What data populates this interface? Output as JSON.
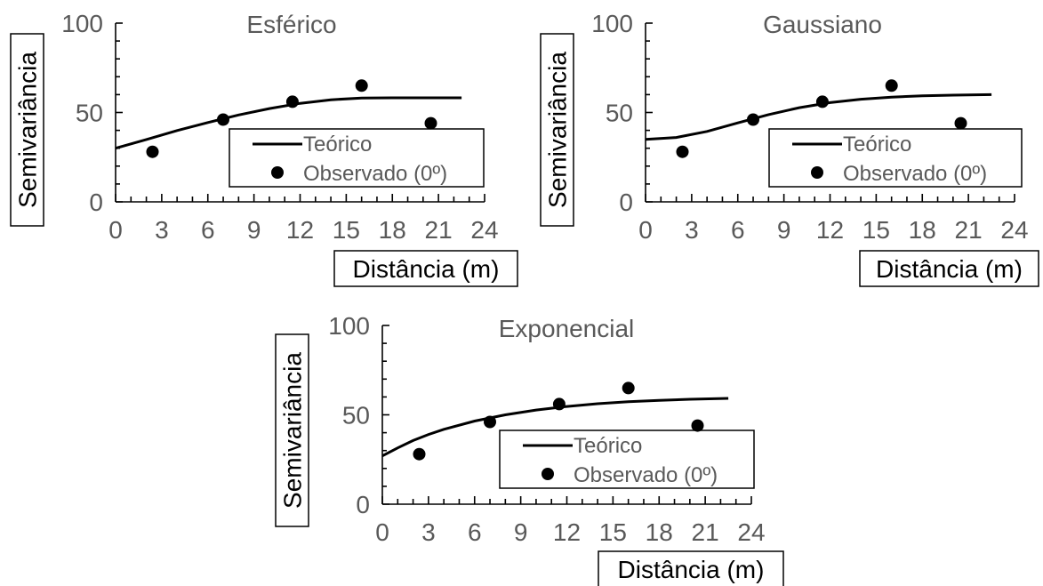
{
  "chart_data": [
    {
      "type": "scatter",
      "title": "Esférico",
      "xlabel": "Distância (m)",
      "ylabel": "Semivariância",
      "xlim": [
        0,
        24
      ],
      "ylim": [
        0,
        100
      ],
      "xticks": [
        "0",
        "3",
        "6",
        "9",
        "12",
        "15",
        "18",
        "21",
        "24"
      ],
      "yticks": [
        "0",
        "50",
        "100"
      ],
      "legend": {
        "placement": "bottom-right",
        "entries": [
          "Teórico",
          "Observado (0º)"
        ]
      },
      "series": [
        {
          "name": "Teórico",
          "type": "line",
          "x": [
            0,
            2,
            4,
            6,
            8,
            10,
            12,
            14,
            16,
            18,
            20,
            22.5
          ],
          "y": [
            30,
            34.9,
            39.9,
            44.4,
            48.6,
            52.2,
            55.1,
            57.1,
            58.1,
            58.2,
            58.2,
            58.2
          ]
        },
        {
          "name": "Observado (0º)",
          "type": "scatter",
          "x": [
            2.4,
            7,
            11.5,
            16,
            20.5
          ],
          "y": [
            28,
            46,
            56,
            65,
            44
          ]
        }
      ]
    },
    {
      "type": "scatter",
      "title": "Gaussiano",
      "xlabel": "Distância (m)",
      "ylabel": "Semivariância",
      "xlim": [
        0,
        24
      ],
      "ylim": [
        0,
        100
      ],
      "xticks": [
        "0",
        "3",
        "6",
        "9",
        "12",
        "15",
        "18",
        "21",
        "24"
      ],
      "yticks": [
        "0",
        "50",
        "100"
      ],
      "legend": {
        "placement": "bottom-right",
        "entries": [
          "Teórico",
          "Observado (0º)"
        ]
      },
      "series": [
        {
          "name": "Teórico",
          "type": "line",
          "x": [
            0,
            2,
            4,
            6,
            8,
            10,
            12,
            14,
            16,
            18,
            20,
            22.5
          ],
          "y": [
            35,
            36,
            39.4,
            44.2,
            48.8,
            52.7,
            55.5,
            57.4,
            58.6,
            59.3,
            59.7,
            60
          ]
        },
        {
          "name": "Observado (0º)",
          "type": "scatter",
          "x": [
            2.4,
            7,
            11.5,
            16,
            20.5
          ],
          "y": [
            28,
            46,
            56,
            65,
            44
          ]
        }
      ]
    },
    {
      "type": "scatter",
      "title": "Exponencial",
      "xlabel": "Distância (m)",
      "ylabel": "Semivariância",
      "xlim": [
        0,
        24
      ],
      "ylim": [
        0,
        100
      ],
      "xticks": [
        "0",
        "3",
        "6",
        "9",
        "12",
        "15",
        "18",
        "21",
        "24"
      ],
      "yticks": [
        "0",
        "50",
        "100"
      ],
      "legend": {
        "placement": "bottom-right",
        "entries": [
          "Teórico",
          "Observado (0º)"
        ]
      },
      "series": [
        {
          "name": "Teórico",
          "type": "line",
          "x": [
            0,
            1,
            2,
            3,
            4,
            6,
            8,
            10,
            12,
            14,
            16,
            18,
            20,
            22.5
          ],
          "y": [
            27,
            31.5,
            35.6,
            39,
            41.9,
            46.5,
            50,
            52.7,
            54.7,
            56.2,
            57.3,
            58.1,
            58.7,
            59.2
          ]
        },
        {
          "name": "Observado (0º)",
          "type": "scatter",
          "x": [
            2.4,
            7,
            11.5,
            16,
            20.5
          ],
          "y": [
            28,
            46,
            56,
            65,
            44
          ]
        }
      ]
    }
  ]
}
